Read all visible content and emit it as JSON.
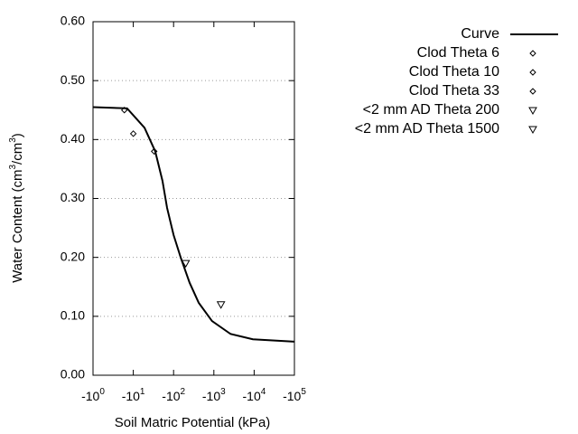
{
  "chart_data": {
    "type": "line",
    "x_label": "Soil Matric Potential (kPa)",
    "y_label": [
      "Water Content (cm",
      "3",
      "/cm",
      "3",
      ")"
    ],
    "xscale": "log",
    "xlim": [
      -1,
      -100000
    ],
    "xticks": [
      {
        "value": -1,
        "label": "-10",
        "exponent": "0"
      },
      {
        "value": -10,
        "label": "-10",
        "exponent": "1"
      },
      {
        "value": -100,
        "label": "-10",
        "exponent": "2"
      },
      {
        "value": -1000,
        "label": "-10",
        "exponent": "3"
      },
      {
        "value": -10000,
        "label": "-10",
        "exponent": "4"
      },
      {
        "value": -100000,
        "label": "-10",
        "exponent": "5"
      }
    ],
    "ylim": [
      0,
      0.6
    ],
    "yticks": [
      {
        "value": 0,
        "label": "0.00"
      },
      {
        "value": 0.1,
        "label": "0.10"
      },
      {
        "value": 0.2,
        "label": "0.20"
      },
      {
        "value": 0.3,
        "label": "0.30"
      },
      {
        "value": 0.4,
        "label": "0.40"
      },
      {
        "value": 0.5,
        "label": "0.50"
      },
      {
        "value": 0.6,
        "label": "0.60"
      }
    ],
    "grid": true,
    "legend": "right",
    "series": [
      {
        "name": "Curve",
        "color": "#000000",
        "style": "line",
        "x": [
          -1,
          -7,
          -19,
          -35,
          -53,
          -69,
          -100,
          -150,
          -250,
          -420,
          -900,
          -2600,
          -9300,
          -100000
        ],
        "values": [
          0.455,
          0.453,
          0.42,
          0.38,
          0.33,
          0.284,
          0.238,
          0.2,
          0.157,
          0.123,
          0.092,
          0.07,
          0.061,
          0.057
        ]
      },
      {
        "name": "Clod Theta 6",
        "color": "#000000",
        "style": "diamond",
        "x": [
          -6
        ],
        "values": [
          0.45
        ]
      },
      {
        "name": "Clod Theta 10",
        "color": "#000000",
        "style": "diamond",
        "x": [
          -10
        ],
        "values": [
          0.41
        ]
      },
      {
        "name": "Clod Theta 33",
        "color": "#000000",
        "style": "diamond",
        "x": [
          -33
        ],
        "values": [
          0.38
        ]
      },
      {
        "name": "<2 mm AD Theta 200",
        "color": "#000000",
        "style": "triangle",
        "x": [
          -200
        ],
        "values": [
          0.19
        ]
      },
      {
        "name": "<2 mm AD Theta 1500",
        "color": "#000000",
        "style": "triangle",
        "x": [
          -1500
        ],
        "values": [
          0.12
        ]
      }
    ]
  }
}
